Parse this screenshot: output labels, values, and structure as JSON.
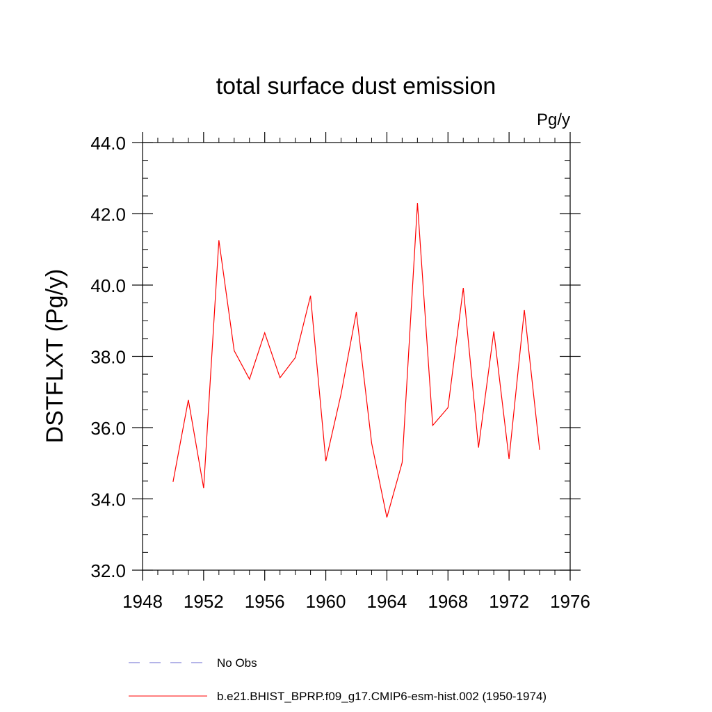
{
  "chart_data": {
    "type": "line",
    "title": "total surface dust emission",
    "units": "Pg/y",
    "xlabel": "",
    "ylabel": "DSTFLXT  (Pg/y)",
    "xlim": [
      1948,
      1976
    ],
    "ylim": [
      32.0,
      44.0
    ],
    "x_ticks": [
      1948,
      1952,
      1956,
      1960,
      1964,
      1968,
      1972,
      1976
    ],
    "x_tick_labels": [
      "1948",
      "1952",
      "1956",
      "1960",
      "1964",
      "1968",
      "1972",
      "1976"
    ],
    "x_minor_step": 1,
    "y_ticks": [
      32.0,
      34.0,
      36.0,
      38.0,
      40.0,
      42.0,
      44.0
    ],
    "y_tick_labels": [
      "32.0",
      "34.0",
      "36.0",
      "38.0",
      "40.0",
      "42.0",
      "44.0"
    ],
    "y_minor_step": 0.5,
    "grid": false,
    "legend_position": "bottom",
    "series": [
      {
        "name": "b.e21.BHIST_BPRP.f09_g17.CMIP6-esm-hist.002 (1950-1974)",
        "color": "#ff0000",
        "style": "solid",
        "x": [
          1950,
          1951,
          1952,
          1953,
          1954,
          1955,
          1956,
          1957,
          1958,
          1959,
          1960,
          1961,
          1962,
          1963,
          1964,
          1965,
          1966,
          1967,
          1968,
          1969,
          1970,
          1971,
          1972,
          1973,
          1974
        ],
        "values": [
          34.48,
          36.78,
          34.3,
          41.26,
          38.16,
          37.36,
          38.66,
          37.4,
          37.96,
          39.7,
          35.06,
          36.94,
          39.24,
          35.56,
          33.48,
          35.02,
          42.3,
          36.06,
          36.56,
          39.92,
          35.44,
          38.7,
          35.12,
          39.3,
          35.38
        ]
      }
    ],
    "legend": [
      {
        "label": "No Obs",
        "color": "#6a6ad0",
        "style": "dashed"
      },
      {
        "label": "b.e21.BHIST_BPRP.f09_g17.CMIP6-esm-hist.002 (1950-1974)",
        "color": "#ff0000",
        "style": "solid"
      }
    ]
  }
}
